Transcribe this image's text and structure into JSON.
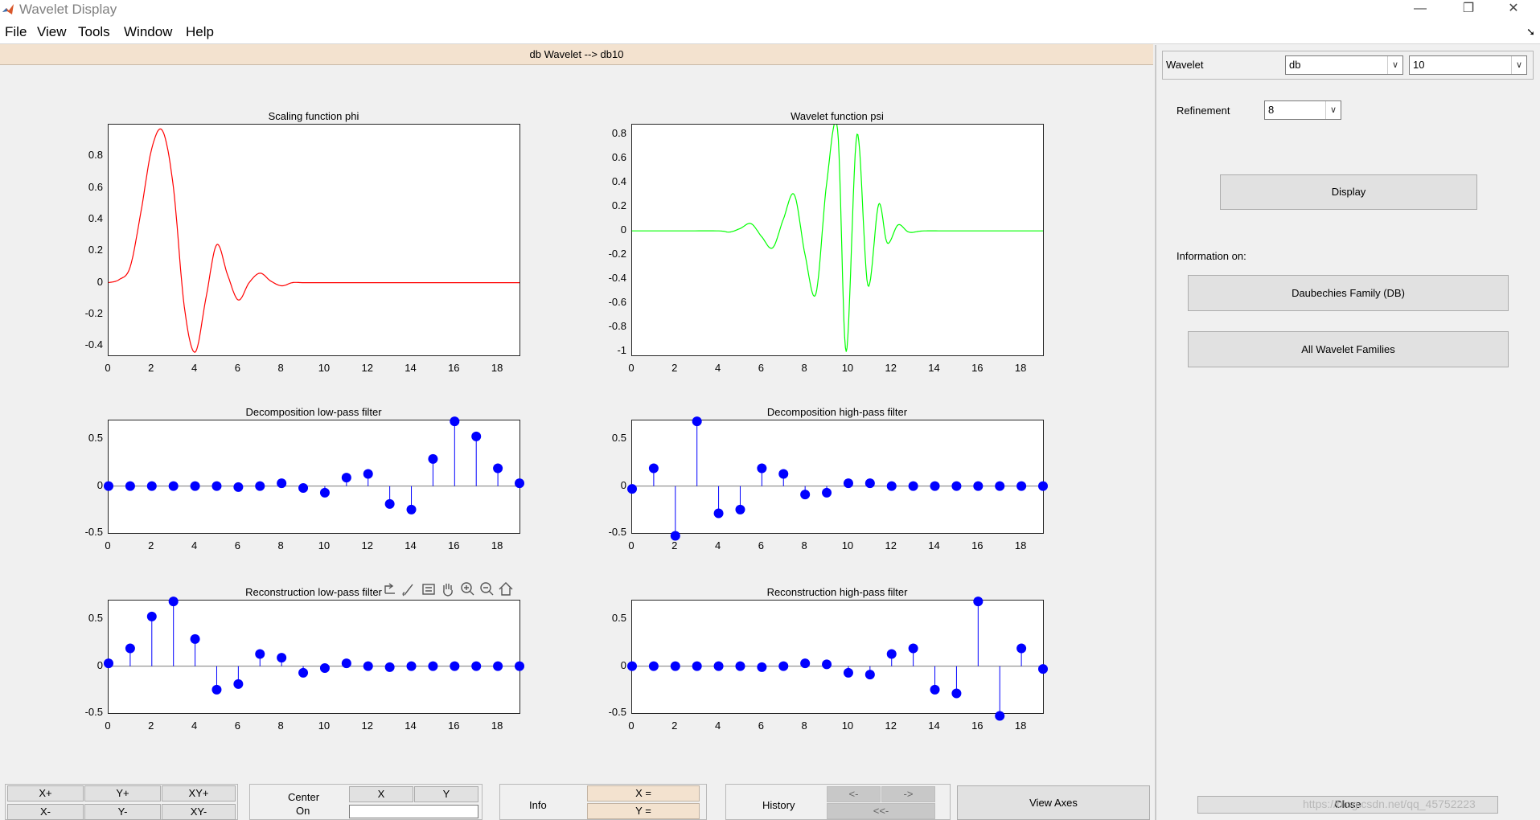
{
  "window": {
    "title": "Wavelet Display",
    "min_glyph": "—",
    "max_glyph": "❐",
    "close_glyph": "✕",
    "dock_glyph": "➘"
  },
  "menu": [
    "File",
    "View",
    "Tools",
    "Window",
    "Help"
  ],
  "info_bar": "db Wavelet -->  db10",
  "plots": {
    "phi": {
      "title": "Scaling function phi",
      "x_ticks": [
        "0",
        "2",
        "4",
        "6",
        "8",
        "10",
        "12",
        "14",
        "16",
        "18"
      ],
      "y_ticks": [
        "0.8",
        "0.6",
        "0.4",
        "0.2",
        "0",
        "-0.2",
        "-0.4"
      ],
      "line_color": "#ff0000"
    },
    "psi": {
      "title": "Wavelet function psi",
      "x_ticks": [
        "0",
        "2",
        "4",
        "6",
        "8",
        "10",
        "12",
        "14",
        "16",
        "18"
      ],
      "y_ticks": [
        "0.8",
        "0.6",
        "0.4",
        "0.2",
        "0",
        "-0.2",
        "-0.4",
        "-0.6",
        "-0.8",
        "-1"
      ],
      "line_color": "#00ff00"
    },
    "lo_d": {
      "title": "Decomposition low-pass filter",
      "x_ticks": [
        "0",
        "2",
        "4",
        "6",
        "8",
        "10",
        "12",
        "14",
        "16",
        "18"
      ],
      "y_ticks": [
        "0.5",
        "0",
        "-0.5"
      ]
    },
    "hi_d": {
      "title": "Decomposition high-pass filter",
      "x_ticks": [
        "0",
        "2",
        "4",
        "6",
        "8",
        "10",
        "12",
        "14",
        "16",
        "18"
      ],
      "y_ticks": [
        "0.5",
        "0",
        "-0.5"
      ]
    },
    "lo_r": {
      "title": "Reconstruction low-pass filter",
      "x_ticks": [
        "0",
        "2",
        "4",
        "6",
        "8",
        "10",
        "12",
        "14",
        "16",
        "18"
      ],
      "y_ticks": [
        "0.5",
        "0",
        "-0.5"
      ]
    },
    "hi_r": {
      "title": "Reconstruction high-pass filter",
      "x_ticks": [
        "0",
        "2",
        "4",
        "6",
        "8",
        "10",
        "12",
        "14",
        "16",
        "18"
      ],
      "y_ticks": [
        "0.5",
        "0",
        "-0.5"
      ]
    }
  },
  "chart_data": [
    {
      "type": "line",
      "title": "Scaling function phi",
      "xlim": [
        0,
        19
      ],
      "ylim": [
        -0.46,
        1.0
      ],
      "x": [
        0,
        0.5,
        1,
        1.5,
        2,
        2.5,
        3,
        3.5,
        4,
        4.5,
        5,
        5.5,
        6,
        6.5,
        7,
        7.5,
        8,
        8.5,
        9,
        10,
        12,
        14,
        16,
        19
      ],
      "y": [
        0,
        0.02,
        0.1,
        0.45,
        0.85,
        0.96,
        0.6,
        -0.15,
        -0.44,
        -0.1,
        0.24,
        0.05,
        -0.11,
        0.0,
        0.06,
        0.01,
        -0.02,
        0.0,
        0.0,
        0,
        0,
        0,
        0,
        0
      ],
      "color": "#ff0000"
    },
    {
      "type": "line",
      "title": "Wavelet function psi",
      "xlim": [
        0,
        19
      ],
      "ylim": [
        -1.03,
        0.88
      ],
      "x": [
        0,
        2,
        4,
        4.5,
        5,
        5.5,
        6,
        6.5,
        7,
        7.5,
        8,
        8.5,
        9,
        9.5,
        9.9,
        10.4,
        10.9,
        11.4,
        11.8,
        12.3,
        12.8,
        13.5,
        15,
        19
      ],
      "y": [
        0,
        0,
        0,
        -0.01,
        0.02,
        0.06,
        -0.05,
        -0.14,
        0.1,
        0.3,
        -0.2,
        -0.52,
        0.4,
        0.84,
        -1.0,
        0.8,
        -0.45,
        0.22,
        -0.1,
        0.05,
        -0.01,
        0,
        0,
        0
      ],
      "color": "#00ff00"
    },
    {
      "type": "stem",
      "title": "Decomposition low-pass filter",
      "xlim": [
        0,
        19
      ],
      "ylim": [
        -0.5,
        0.7
      ],
      "x": [
        0,
        1,
        2,
        3,
        4,
        5,
        6,
        7,
        8,
        9,
        10,
        11,
        12,
        13,
        14,
        15,
        16,
        17,
        18,
        19
      ],
      "y": [
        0.0,
        0.0,
        0.0,
        0.0,
        0.0,
        0.0,
        -0.01,
        0.0,
        0.03,
        -0.02,
        -0.07,
        0.09,
        0.13,
        -0.19,
        -0.25,
        0.29,
        0.69,
        0.53,
        0.19,
        0.03
      ]
    },
    {
      "type": "stem",
      "title": "Decomposition high-pass filter",
      "xlim": [
        0,
        19
      ],
      "ylim": [
        -0.5,
        0.7
      ],
      "x": [
        0,
        1,
        2,
        3,
        4,
        5,
        6,
        7,
        8,
        9,
        10,
        11,
        12,
        13,
        14,
        15,
        16,
        17,
        18,
        19
      ],
      "y": [
        -0.03,
        0.19,
        -0.53,
        0.69,
        -0.29,
        -0.25,
        0.19,
        0.13,
        -0.09,
        -0.07,
        0.03,
        0.03,
        0.0,
        0.0,
        0.0,
        0.0,
        0.0,
        0.0,
        0.0,
        0.0
      ]
    },
    {
      "type": "stem",
      "title": "Reconstruction low-pass filter",
      "xlim": [
        0,
        19
      ],
      "ylim": [
        -0.5,
        0.7
      ],
      "x": [
        0,
        1,
        2,
        3,
        4,
        5,
        6,
        7,
        8,
        9,
        10,
        11,
        12,
        13,
        14,
        15,
        16,
        17,
        18,
        19
      ],
      "y": [
        0.03,
        0.19,
        0.53,
        0.69,
        0.29,
        -0.25,
        -0.19,
        0.13,
        0.09,
        -0.07,
        -0.02,
        0.03,
        0.0,
        -0.01,
        0.0,
        0.0,
        0.0,
        0.0,
        0.0,
        0.0
      ]
    },
    {
      "type": "stem",
      "title": "Reconstruction high-pass filter",
      "xlim": [
        0,
        19
      ],
      "ylim": [
        -0.5,
        0.7
      ],
      "x": [
        0,
        1,
        2,
        3,
        4,
        5,
        6,
        7,
        8,
        9,
        10,
        11,
        12,
        13,
        14,
        15,
        16,
        17,
        18,
        19
      ],
      "y": [
        0.0,
        0.0,
        0.0,
        0.0,
        0.0,
        0.0,
        -0.01,
        0.0,
        0.03,
        0.02,
        -0.07,
        -0.09,
        0.13,
        0.19,
        -0.25,
        -0.29,
        0.69,
        -0.53,
        0.19,
        -0.03
      ]
    }
  ],
  "stem_color": "#0000ff",
  "right_panel": {
    "wavelet_label": "Wavelet",
    "family_value": "db",
    "order_value": "10",
    "refinement_label": "Refinement",
    "refinement_value": "8",
    "display_button": "Display",
    "info_label": "Information on:",
    "family_button": "Daubechies Family (DB)",
    "all_button": "All Wavelet Families",
    "close_button": "Close"
  },
  "bottom": {
    "zoom": {
      "xplus": "X+",
      "yplus": "Y+",
      "xyplus": "XY+",
      "xminus": "X-",
      "yminus": "Y-",
      "xyminus": "XY-"
    },
    "center": {
      "label": "Center",
      "on": "On",
      "x": "X",
      "y": "Y"
    },
    "info": {
      "label": "Info",
      "x_readout": "X =",
      "y_readout": "Y ="
    },
    "history": {
      "label": "History",
      "back": "<-",
      "forward": "->",
      "first": "<<-"
    },
    "view_axes": "View Axes"
  },
  "watermark": "https://blog.csdn.net/qq_45752223"
}
